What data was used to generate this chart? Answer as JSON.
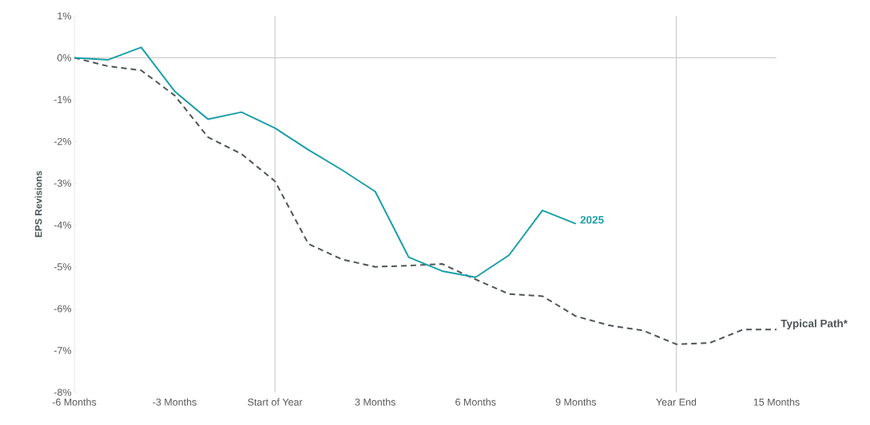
{
  "chart_data": {
    "type": "line",
    "ylabel": "EPS Revisions",
    "xlim": [
      -6,
      15
    ],
    "xticks": [
      {
        "value": -6,
        "label": "-6 Months"
      },
      {
        "value": -3,
        "label": "-3 Months"
      },
      {
        "value": 0,
        "label": "Start of Year"
      },
      {
        "value": 3,
        "label": "3 Months"
      },
      {
        "value": 6,
        "label": "6 Months"
      },
      {
        "value": 9,
        "label": "9 Months"
      },
      {
        "value": 12,
        "label": "Year End"
      },
      {
        "value": 15,
        "label": "15 Months"
      }
    ],
    "ylim": [
      -8,
      1
    ],
    "yticks": [
      {
        "value": 1,
        "label": "1%"
      },
      {
        "value": 0,
        "label": "0%"
      },
      {
        "value": -1,
        "label": "-1%"
      },
      {
        "value": -2,
        "label": "-2%"
      },
      {
        "value": -3,
        "label": "-3%"
      },
      {
        "value": -4,
        "label": "-4%"
      },
      {
        "value": -5,
        "label": "-5%"
      },
      {
        "value": -6,
        "label": "-6%"
      },
      {
        "value": -7,
        "label": "-7%"
      },
      {
        "value": -8,
        "label": "-8%"
      }
    ],
    "ref_lines": [
      {
        "axis": "y",
        "value": 0,
        "color": "#bfbfbf"
      },
      {
        "axis": "x",
        "value": 0,
        "color": "#bfbfbf"
      },
      {
        "axis": "x",
        "value": 12,
        "color": "#bfbfbf"
      }
    ],
    "series": [
      {
        "name": "Typical Path*",
        "color": "#4d5557",
        "line_style": "dashed",
        "x": [
          -6,
          -5,
          -4,
          -3,
          -2,
          -1,
          0,
          1,
          2,
          3,
          4,
          5,
          6,
          7,
          8,
          9,
          10,
          11,
          12,
          13,
          14,
          15
        ],
        "values": [
          0,
          -0.2,
          -0.3,
          -0.9,
          -1.9,
          -2.3,
          -2.95,
          -4.45,
          -4.82,
          -5.0,
          -4.97,
          -4.93,
          -5.3,
          -5.65,
          -5.7,
          -6.18,
          -6.4,
          -6.52,
          -6.85,
          -6.82,
          -6.5,
          -6.5
        ]
      },
      {
        "name": "2025",
        "color": "#1a9fa6",
        "line_style": "solid",
        "x": [
          -6,
          -5,
          -4,
          -3,
          -2,
          -1,
          0,
          1,
          2,
          3,
          4,
          5,
          6,
          7,
          8,
          9
        ],
        "values": [
          0,
          -0.05,
          0.25,
          -0.8,
          -1.47,
          -1.3,
          -1.68,
          -2.2,
          -2.68,
          -3.2,
          -4.77,
          -5.1,
          -5.25,
          -4.72,
          -3.65,
          -3.97
        ]
      }
    ]
  }
}
